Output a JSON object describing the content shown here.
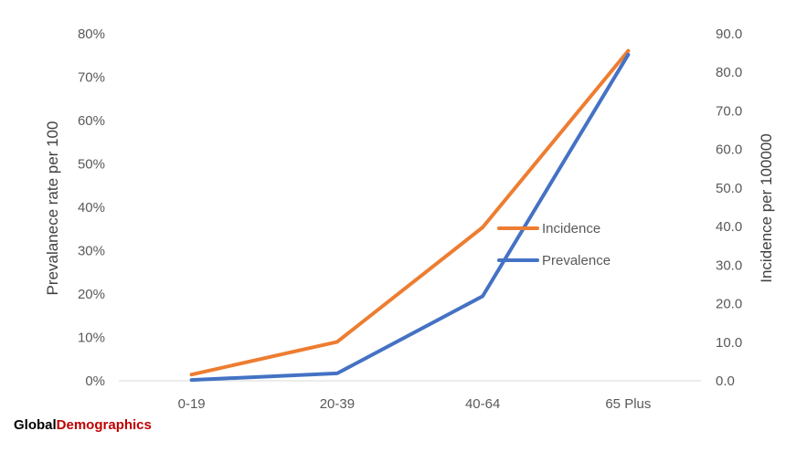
{
  "chart_data": {
    "type": "line",
    "categories": [
      "0-19",
      "20-39",
      "40-64",
      "65 Plus"
    ],
    "series": [
      {
        "name": "Incidence",
        "axis": "right",
        "color": "#ED7D31",
        "values": [
          1.6,
          10.1,
          39.8,
          85.6
        ]
      },
      {
        "name": "Prevalence",
        "axis": "left",
        "color": "#4472C4",
        "values": [
          0.002,
          0.017,
          0.195,
          0.752
        ]
      }
    ],
    "y_left": {
      "label": "Prevalanece rate per 100",
      "min": 0,
      "max": 0.8,
      "ticks": [
        {
          "value": 0,
          "label": "0%"
        },
        {
          "value": 0.1,
          "label": "10%"
        },
        {
          "value": 0.2,
          "label": "20%"
        },
        {
          "value": 0.3,
          "label": "30%"
        },
        {
          "value": 0.4,
          "label": "40%"
        },
        {
          "value": 0.5,
          "label": "50%"
        },
        {
          "value": 0.6,
          "label": "60%"
        },
        {
          "value": 0.7,
          "label": "70%"
        },
        {
          "value": 0.8,
          "label": "80%"
        }
      ]
    },
    "y_right": {
      "label": "Incidence per 100000",
      "min": 0,
      "max": 90,
      "ticks": [
        {
          "value": 0,
          "label": "0.0"
        },
        {
          "value": 10,
          "label": "10.0"
        },
        {
          "value": 20,
          "label": "20.0"
        },
        {
          "value": 30,
          "label": "30.0"
        },
        {
          "value": 40,
          "label": "40.0"
        },
        {
          "value": 50,
          "label": "50.0"
        },
        {
          "value": 60,
          "label": "60.0"
        },
        {
          "value": 70,
          "label": "70.0"
        },
        {
          "value": 80,
          "label": "80.0"
        },
        {
          "value": 90,
          "label": "90.0"
        }
      ]
    },
    "legend_position": "inside-right-middle",
    "grid": false
  },
  "branding": {
    "part1": "Global",
    "part2": "Demographics",
    "color1": "#000000",
    "color2": "#C00000"
  }
}
